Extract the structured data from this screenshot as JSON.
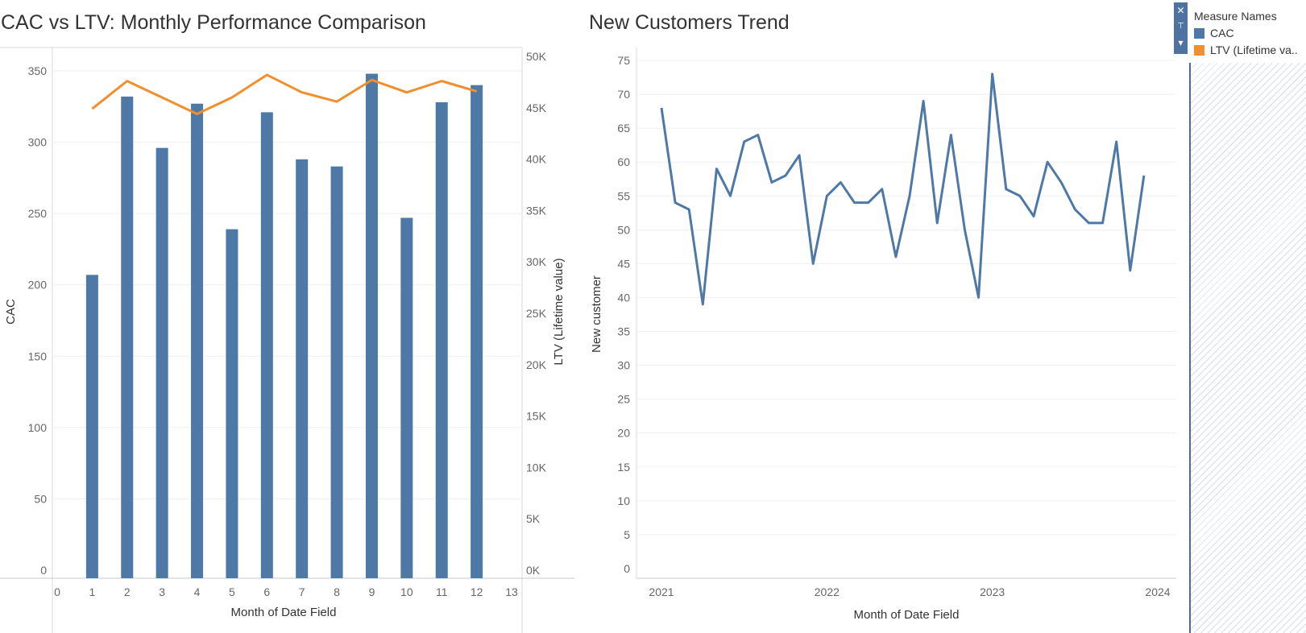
{
  "chart_data": [
    {
      "type": "bar+line",
      "title": "CAC vs LTV: Monthly Performance Comparison",
      "xlabel": "Month of Date Field",
      "ylabel": "CAC",
      "y2label": "LTV (Lifetime value)",
      "xlim": [
        0,
        13
      ],
      "x_ticks": [
        "0",
        "1",
        "2",
        "3",
        "4",
        "5",
        "6",
        "7",
        "8",
        "9",
        "10",
        "11",
        "12",
        "13"
      ],
      "ylim": [
        0,
        360
      ],
      "y_ticks": [
        0,
        50,
        100,
        150,
        200,
        250,
        300,
        350
      ],
      "y2lim": [
        0,
        50000
      ],
      "y2_ticks": [
        "0K",
        "5K",
        "10K",
        "15K",
        "20K",
        "25K",
        "30K",
        "35K",
        "40K",
        "45K",
        "50K"
      ],
      "x": [
        1,
        2,
        3,
        4,
        5,
        6,
        7,
        8,
        9,
        10,
        11,
        12
      ],
      "series": [
        {
          "name": "CAC",
          "mark": "bar",
          "axis": "left",
          "color": "#4e79a7",
          "values": [
            207,
            332,
            296,
            327,
            239,
            321,
            288,
            283,
            348,
            247,
            328,
            340
          ]
        },
        {
          "name": "LTV (Lifetime va...",
          "mark": "line",
          "axis": "right",
          "color": "#f28e2b",
          "values": [
            44900,
            47600,
            46000,
            44400,
            46000,
            48200,
            46500,
            45600,
            47700,
            46500,
            47600,
            46600
          ]
        }
      ],
      "grid": true
    },
    {
      "type": "line",
      "title": "New Customers Trend",
      "xlabel": "Month of Date Field",
      "ylabel": "New customer",
      "ylim": [
        0,
        76
      ],
      "y_ticks": [
        0,
        5,
        10,
        15,
        20,
        25,
        30,
        35,
        40,
        45,
        50,
        55,
        60,
        65,
        70,
        75
      ],
      "x_ticks": [
        "2021",
        "2022",
        "2023",
        "2024"
      ],
      "series": [
        {
          "name": "New customer",
          "color": "#4e79a7",
          "x": [
            "2021-01",
            "2021-02",
            "2021-03",
            "2021-04",
            "2021-05",
            "2021-06",
            "2021-07",
            "2021-08",
            "2021-09",
            "2021-10",
            "2021-11",
            "2021-12",
            "2022-01",
            "2022-02",
            "2022-03",
            "2022-04",
            "2022-05",
            "2022-06",
            "2022-07",
            "2022-08",
            "2022-09",
            "2022-10",
            "2022-11",
            "2022-12",
            "2023-01",
            "2023-02",
            "2023-03",
            "2023-04",
            "2023-05",
            "2023-06",
            "2023-07",
            "2023-08",
            "2023-09",
            "2023-10",
            "2023-11",
            "2023-12"
          ],
          "values": [
            68,
            54,
            53,
            39,
            59,
            55,
            63,
            64,
            57,
            58,
            61,
            45,
            55,
            57,
            54,
            54,
            56,
            46,
            55,
            69,
            51,
            64,
            50,
            40,
            73,
            56,
            55,
            52,
            60,
            57,
            53,
            51,
            51,
            63,
            44,
            58
          ]
        }
      ],
      "grid": true
    }
  ],
  "legend": {
    "title": "Measure Names",
    "items": [
      {
        "label": "CAC",
        "color": "#4e79a7"
      },
      {
        "label": "LTV (Lifetime va..",
        "color": "#f28e2b"
      }
    ]
  },
  "legend_controls": {
    "close": "✕",
    "pin": "📌",
    "menu": "▾"
  }
}
